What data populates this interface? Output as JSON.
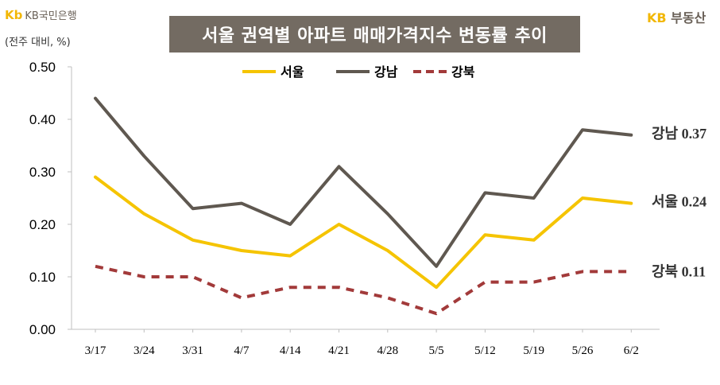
{
  "header": {
    "logo_left_mark": "Kb",
    "logo_left_text": "KB국민은행",
    "unit_label": "(전주 대비, %)",
    "title": "서울 권역별 아파트 매매가격지수 변동률 추이",
    "logo_right_kb": "KB",
    "logo_right_text": "부동산"
  },
  "colors": {
    "seoul": "#f5c400",
    "gangnam": "#5f5850",
    "gangbuk": "#a23a3a",
    "title_bg": "#736b62"
  },
  "chart_data": {
    "type": "line",
    "title": "서울 권역별 아파트 매매가격지수 변동률 추이",
    "xlabel": "",
    "ylabel": "(전주 대비, %)",
    "ylim": [
      0,
      0.5
    ],
    "yticks": [
      "0.00",
      "0.10",
      "0.20",
      "0.30",
      "0.40",
      "0.50"
    ],
    "categories": [
      "3/17",
      "3/24",
      "3/31",
      "4/7",
      "4/14",
      "4/21",
      "4/28",
      "5/5",
      "5/12",
      "5/19",
      "5/26",
      "6/2"
    ],
    "series": [
      {
        "name": "서울",
        "values": [
          0.29,
          0.22,
          0.17,
          0.15,
          0.14,
          0.2,
          0.15,
          0.08,
          0.18,
          0.17,
          0.25,
          0.24
        ],
        "end_label": "서울 0.24"
      },
      {
        "name": "강남",
        "values": [
          0.44,
          0.33,
          0.23,
          0.24,
          0.2,
          0.31,
          0.22,
          0.12,
          0.26,
          0.25,
          0.38,
          0.37
        ],
        "end_label": "강남 0.37"
      },
      {
        "name": "강북",
        "values": [
          0.12,
          0.1,
          0.1,
          0.06,
          0.08,
          0.08,
          0.06,
          0.03,
          0.09,
          0.09,
          0.11,
          0.11
        ],
        "end_label": "강북 0.11"
      }
    ],
    "legend": "top-center"
  }
}
